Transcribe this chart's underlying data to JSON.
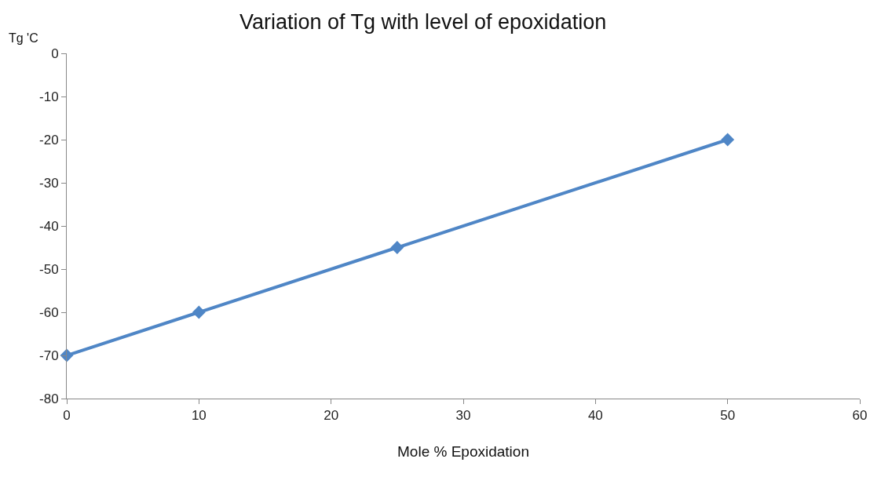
{
  "chart_data": {
    "type": "line",
    "title": "Variation of Tg with level of epoxidation",
    "xlabel": "Mole % Epoxidation",
    "ylabel": "Tg 'C",
    "x": [
      0,
      10,
      25,
      50
    ],
    "series": [
      {
        "color": "#4f86c6",
        "values": [
          -70,
          -60,
          -45,
          -20
        ]
      }
    ],
    "xlim": [
      0,
      60
    ],
    "xticks": [
      0,
      10,
      20,
      30,
      40,
      50,
      60
    ],
    "ylim": [
      -80,
      0
    ],
    "yticks": [
      -80,
      -70,
      -60,
      -50,
      -40,
      -30,
      -20,
      -10,
      0
    ],
    "grid": false,
    "marker": "diamond",
    "line_style": "solid"
  }
}
